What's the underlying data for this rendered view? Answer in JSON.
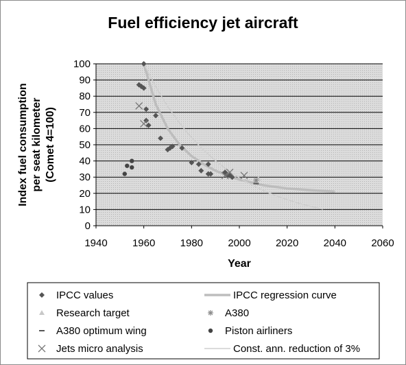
{
  "chart_data": {
    "type": "scatter",
    "title": "Fuel efficiency jet aircraft",
    "xlabel": "Year",
    "ylabel_lines": [
      "Index fuel consumption",
      "per seat kilometer",
      "(Comet 4=100)"
    ],
    "xlim": [
      1940,
      2060
    ],
    "ylim": [
      0,
      100
    ],
    "x_ticks": [
      1940,
      1960,
      1980,
      2000,
      2020,
      2040,
      2060
    ],
    "y_ticks": [
      0,
      10,
      20,
      30,
      40,
      50,
      60,
      70,
      80,
      90,
      100
    ],
    "grid": "horizontal",
    "legend_position": "bottom",
    "series": [
      {
        "name": "IPCC values",
        "marker": "diamond",
        "color": "#555555",
        "points": [
          [
            1960,
            100
          ],
          [
            1958,
            87
          ],
          [
            1959,
            86
          ],
          [
            1960,
            85
          ],
          [
            1961,
            72
          ],
          [
            1961,
            65
          ],
          [
            1962,
            62
          ],
          [
            1965,
            68
          ],
          [
            1967,
            54
          ],
          [
            1970,
            47
          ],
          [
            1971,
            48
          ],
          [
            1972,
            49
          ],
          [
            1976,
            48
          ],
          [
            1980,
            39
          ],
          [
            1983,
            38
          ],
          [
            1984,
            34
          ],
          [
            1987,
            38
          ],
          [
            1987,
            32
          ],
          [
            1988,
            32
          ],
          [
            1994,
            33
          ],
          [
            1995,
            31
          ],
          [
            1996,
            31
          ],
          [
            1997,
            30
          ]
        ]
      },
      {
        "name": "IPCC regression curve",
        "type": "line",
        "style": "thick-light",
        "color": "#bdbdbd",
        "points": [
          [
            1960,
            100
          ],
          [
            1965,
            75
          ],
          [
            1970,
            60
          ],
          [
            1975,
            50
          ],
          [
            1980,
            43
          ],
          [
            1985,
            38
          ],
          [
            1990,
            34
          ],
          [
            1995,
            31
          ],
          [
            2000,
            28.5
          ],
          [
            2010,
            25
          ],
          [
            2020,
            23
          ],
          [
            2030,
            22
          ],
          [
            2040,
            21
          ]
        ]
      },
      {
        "name": "Research target",
        "marker": "triangle",
        "color": "#c8c8c8",
        "points": [
          [
            2008,
            29
          ]
        ]
      },
      {
        "name": "A380",
        "marker": "star",
        "color": "#8a8a8a",
        "points": [
          [
            2007,
            28
          ]
        ]
      },
      {
        "name": "A380 optimum wing",
        "marker": "dash",
        "color": "#555555",
        "points": [
          [
            2007,
            26
          ]
        ]
      },
      {
        "name": "Piston airliners",
        "marker": "circle",
        "color": "#444444",
        "points": [
          [
            1952,
            32
          ],
          [
            1953,
            37
          ],
          [
            1955,
            40
          ],
          [
            1955,
            36
          ]
        ]
      },
      {
        "name": "Jets micro analysis",
        "marker": "x",
        "color": "#777777",
        "points": [
          [
            1958,
            74
          ],
          [
            1960,
            63
          ],
          [
            1994,
            31
          ],
          [
            1996,
            33
          ],
          [
            2002,
            31
          ]
        ]
      },
      {
        "name": "Const. ann. reduction of 3%",
        "type": "line",
        "style": "thin-light",
        "color": "#cfcfcf",
        "points": [
          [
            1960,
            100
          ],
          [
            1965,
            85.9
          ],
          [
            1970,
            73.7
          ],
          [
            1975,
            63.3
          ],
          [
            1980,
            54.4
          ],
          [
            1985,
            46.7
          ],
          [
            1990,
            40.1
          ],
          [
            1995,
            34.4
          ],
          [
            2000,
            29.6
          ],
          [
            2005,
            25.4
          ],
          [
            2010,
            21.8
          ],
          [
            2015,
            18.7
          ],
          [
            2020,
            16.1
          ],
          [
            2025,
            13.8
          ],
          [
            2030,
            11.9
          ],
          [
            2035,
            10.2
          ]
        ]
      }
    ]
  }
}
